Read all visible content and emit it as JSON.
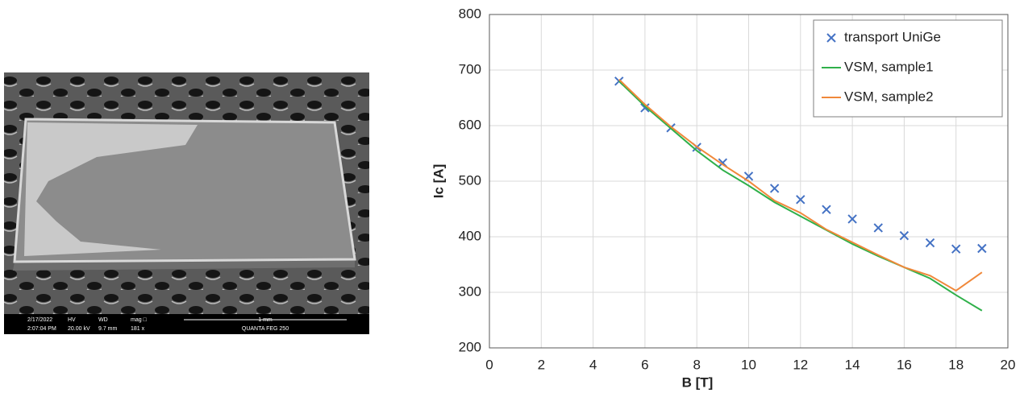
{
  "sem_image": {
    "date": "2/17/2022",
    "time": "2:07:04 PM",
    "hv_label": "HV",
    "hv": "20.00 kV",
    "wd_label": "WD",
    "wd": "9.7 mm",
    "mag_label": "mag □",
    "mag": "181 x",
    "scale_bar": "1 mm",
    "instrument": "QUANTA FEG 250"
  },
  "chart_data": {
    "type": "line",
    "x_label": "B [T]",
    "y_label": "Ic [A]",
    "x": [
      5,
      6,
      7,
      8,
      9,
      10,
      11,
      12,
      13,
      14,
      15,
      16,
      17,
      18,
      19
    ],
    "series": [
      {
        "name": "transport UniGe",
        "color": "#4472c4",
        "mode": "markers",
        "values": [
          680,
          632,
          596,
          561,
          533,
          509,
          487,
          467,
          449,
          432,
          416,
          402,
          389,
          378,
          379
        ]
      },
      {
        "name": "VSM, sample1",
        "color": "#2fb04a",
        "mode": "lines",
        "values": [
          680,
          635,
          595,
          555,
          520,
          492,
          462,
          437,
          412,
          387,
          365,
          345,
          325,
          295,
          267
        ]
      },
      {
        "name": "VSM, sample2",
        "color": "#f0883a",
        "mode": "lines",
        "values": [
          683,
          638,
          598,
          562,
          530,
          500,
          465,
          443,
          413,
          390,
          367,
          345,
          330,
          303,
          336
        ]
      }
    ],
    "xlim": [
      0,
      20
    ],
    "xticks": [
      0,
      2,
      4,
      6,
      8,
      10,
      12,
      14,
      16,
      18,
      20
    ],
    "ylim": [
      200,
      800
    ],
    "yticks": [
      200,
      300,
      400,
      500,
      600,
      700,
      800
    ],
    "grid": true,
    "legend": "upper right"
  }
}
